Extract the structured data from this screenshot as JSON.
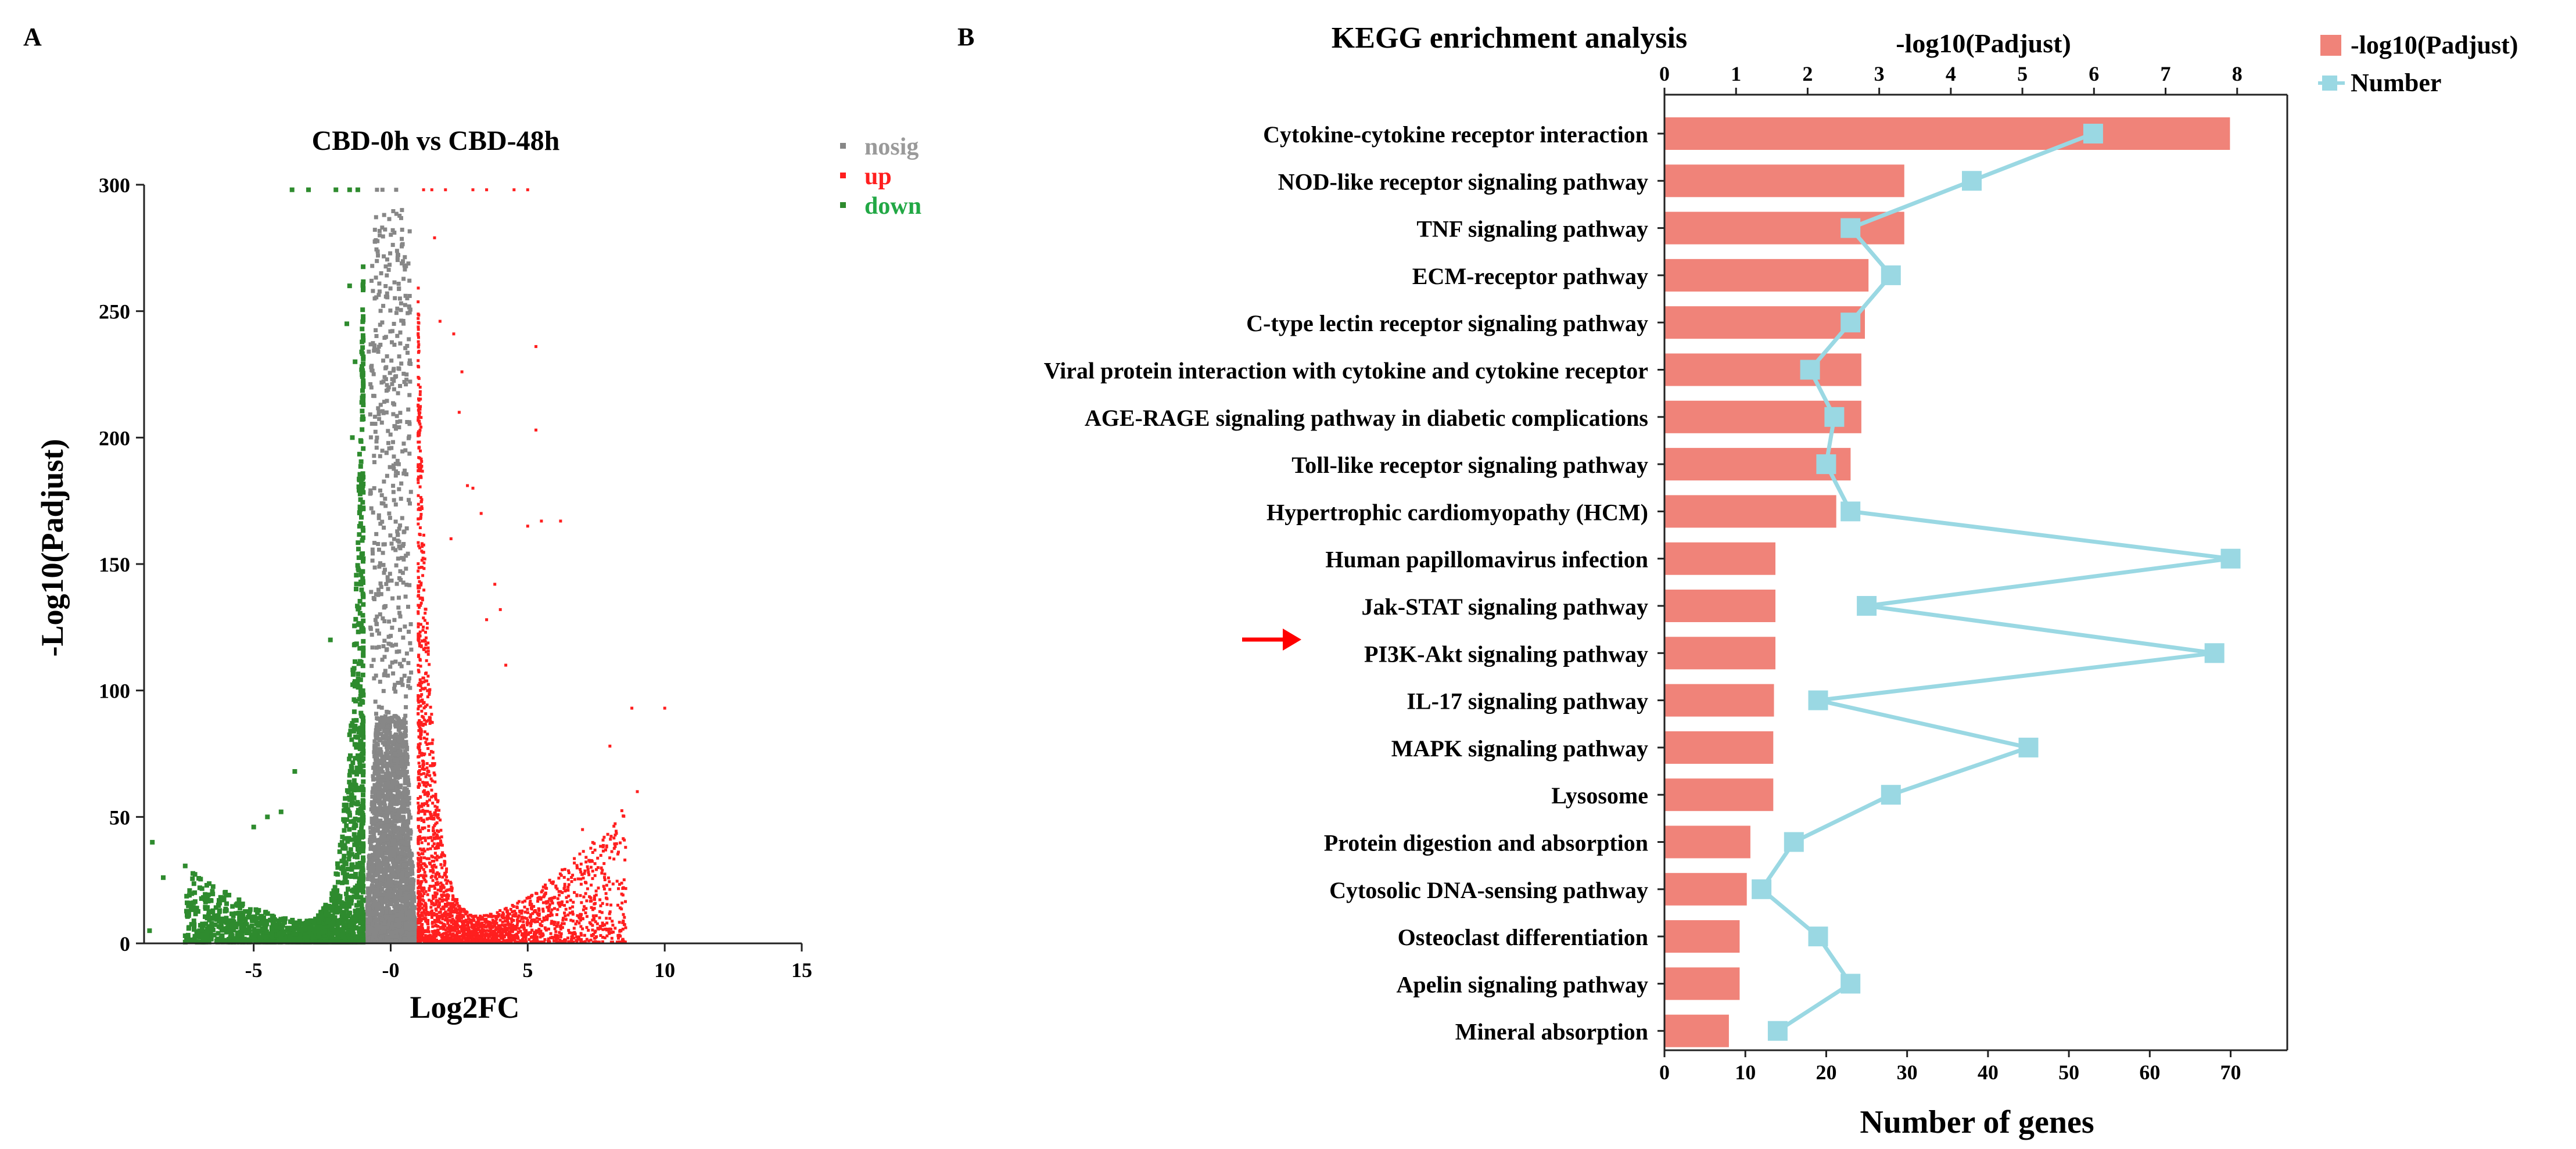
{
  "figure": {
    "panel_a_letter": "A",
    "panel_b_letter": "B"
  },
  "chart_data": [
    {
      "type": "scatter",
      "title": "CBD-0h vs CBD-48h",
      "xlabel": "Log2FC",
      "ylabel": "-Log10(Padjust)",
      "xlim": [
        -9,
        15
      ],
      "ylim": [
        0,
        300
      ],
      "x_ticks": [
        -5,
        0,
        5,
        10,
        15
      ],
      "x_tick_labels": [
        "-5",
        "-0",
        "5",
        "10",
        "15"
      ],
      "y_ticks": [
        0,
        50,
        100,
        150,
        200,
        250,
        300
      ],
      "y_tick_labels": [
        "0",
        "50",
        "100",
        "150",
        "200",
        "250",
        "300"
      ],
      "legend_position": "top-right",
      "series": [
        {
          "name": "nosig",
          "color": "#878787"
        },
        {
          "name": "up",
          "color": "#ff1f1f"
        },
        {
          "name": "down",
          "color": "#2e8b2e"
        }
      ],
      "highlight_points": {
        "up": [
          [
            1.2,
            298
          ],
          [
            1.5,
            298
          ],
          [
            2,
            298
          ],
          [
            3,
            298
          ],
          [
            3.5,
            298
          ],
          [
            4.5,
            298
          ],
          [
            5,
            298
          ],
          [
            5.3,
            236
          ],
          [
            5.3,
            203
          ],
          [
            5.5,
            167
          ],
          [
            6.2,
            167
          ],
          [
            5,
            165
          ],
          [
            8.8,
            93
          ],
          [
            10,
            93
          ],
          [
            8,
            78
          ],
          [
            9,
            60
          ],
          [
            7,
            45
          ],
          [
            3.8,
            142
          ],
          [
            4,
            132
          ],
          [
            4.2,
            110
          ],
          [
            3.5,
            128
          ],
          [
            2.8,
            181
          ],
          [
            2.5,
            210
          ],
          [
            1.8,
            246
          ],
          [
            2.3,
            241
          ],
          [
            3,
            180
          ],
          [
            3.3,
            170
          ],
          [
            2.2,
            160
          ],
          [
            1.6,
            279
          ],
          [
            2.6,
            226
          ]
        ],
        "down": [
          [
            -3.6,
            298
          ],
          [
            -3,
            298
          ],
          [
            -1.5,
            298
          ],
          [
            -1.2,
            298
          ],
          [
            -2,
            298
          ],
          [
            -8.7,
            40
          ],
          [
            -8.3,
            26
          ],
          [
            -8.8,
            5
          ],
          [
            -7.5,
            3
          ],
          [
            -5,
            46
          ],
          [
            -4.5,
            50
          ],
          [
            -4,
            52
          ],
          [
            -6,
            10
          ],
          [
            -5.5,
            14
          ],
          [
            -3.5,
            68
          ],
          [
            -2.2,
            120
          ],
          [
            -1.5,
            260
          ],
          [
            -1.6,
            245
          ],
          [
            -1.3,
            230
          ],
          [
            -1.4,
            200
          ]
        ],
        "nosig": [
          [
            -0.5,
            298
          ],
          [
            -0.3,
            298
          ],
          [
            0.2,
            298
          ],
          [
            -0.4,
            280
          ],
          [
            -0.7,
            262
          ],
          [
            -0.8,
            234
          ],
          [
            -0.5,
            200
          ],
          [
            -0.6,
            180
          ]
        ]
      }
    },
    {
      "type": "bar",
      "title": "KEGG enrichment analysis",
      "top_axis_label": "-log10(Padjust)",
      "xlabel": "Number of genes",
      "top_axis_range": [
        0,
        8.7
      ],
      "top_ticks": [
        0,
        1,
        2,
        3,
        4,
        5,
        6,
        7,
        8
      ],
      "bottom_axis_range": [
        0,
        77
      ],
      "bottom_ticks": [
        0,
        10,
        20,
        30,
        40,
        50,
        60,
        70
      ],
      "legend": [
        {
          "name": "-log10(Padjust)",
          "color": "#f08379",
          "kind": "bar"
        },
        {
          "name": "Number",
          "color": "#9ad8e3",
          "kind": "line-square"
        }
      ],
      "categories": [
        "Cytokine-cytokine receptor interaction",
        "NOD-like receptor signaling pathway",
        "TNF signaling pathway",
        "ECM-receptor pathway",
        "C-type lectin receptor signaling pathway",
        "Viral protein interaction with cytokine and cytokine receptor",
        "AGE-RAGE signaling pathway in diabetic complications",
        "Toll-like receptor signaling pathway",
        "Hypertrophic cardiomyopathy (HCM)",
        "Human papillomavirus infection",
        "Jak-STAT signaling pathway",
        "PI3K-Akt signaling pathway",
        "IL-17 signaling pathway",
        "MAPK signaling pathway",
        "Lysosome",
        "Protein digestion and absorption",
        "Cytosolic DNA-sensing pathway",
        "Osteoclast differentiation",
        "Apelin signaling pathway",
        "Mineral absorption"
      ],
      "highlighted_category": "PI3K-Akt signaling pathway",
      "series": [
        {
          "name": "-log10(Padjust)",
          "values": [
            7.9,
            3.35,
            3.35,
            2.85,
            2.8,
            2.75,
            2.75,
            2.6,
            2.4,
            1.55,
            1.55,
            1.55,
            1.53,
            1.52,
            1.52,
            1.2,
            1.15,
            1.05,
            1.05,
            0.9
          ]
        },
        {
          "name": "Number",
          "values": [
            53,
            38,
            23,
            28,
            23,
            18,
            21,
            20,
            23,
            70,
            25,
            68,
            19,
            45,
            28,
            16,
            12,
            19,
            23,
            14
          ]
        }
      ]
    }
  ]
}
